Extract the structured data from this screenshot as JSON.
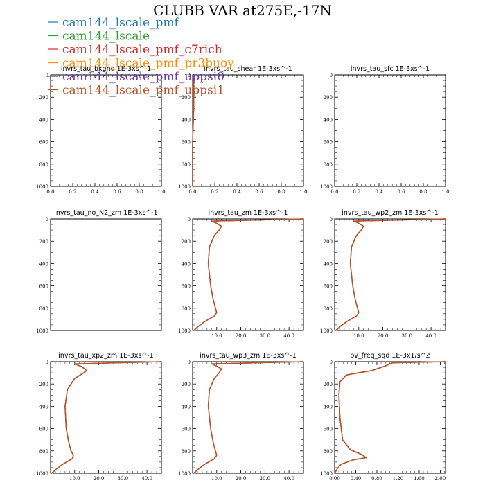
{
  "title": "CLUBB VAR at275E,-17N",
  "legend": [
    {
      "name": "cam144_lscale_pmf",
      "color": "#1f77b4"
    },
    {
      "name": "cam144_lscale",
      "color": "#2ca02c"
    },
    {
      "name": "cam144_lscale_pmf_c7rich",
      "color": "#d62728"
    },
    {
      "name": "cam144_lscale_pmf_pr3buoy",
      "color": "#ff8c00"
    },
    {
      "name": "cam144_lscale_pmf_uppsi0",
      "color": "#6a3d9a"
    },
    {
      "name": "cam144_lscale_pmf_uppsi1",
      "color": "#b5532a"
    }
  ],
  "chart_data": [
    {
      "type": "line",
      "title": "invrs_tau_bkgnd   1E-3xs^-1",
      "xlim": [
        0,
        1
      ],
      "ylim": [
        1000,
        0
      ],
      "xticks": [
        "0.0",
        "0.2",
        "0.4",
        "0.6",
        "0.8",
        "1.0"
      ],
      "yticks": [
        "0",
        "200",
        "400",
        "600",
        "800",
        "1000"
      ],
      "series": []
    },
    {
      "type": "line",
      "title": "invrs_tau_shear   1E-3xs^-1",
      "xlim": [
        0,
        1
      ],
      "ylim": [
        1000,
        0
      ],
      "xticks": [
        "0.0",
        "0.2",
        "0.4",
        "0.6",
        "0.8",
        "1.0"
      ],
      "yticks": [
        "0",
        "200",
        "400",
        "600",
        "800",
        "1000"
      ],
      "series": [
        {
          "x": [
            0.02,
            0.01,
            0.01,
            0.01,
            0.0,
            0.0,
            0.0
          ],
          "y": [
            0,
            50,
            150,
            300,
            600,
            900,
            1000
          ]
        }
      ]
    },
    {
      "type": "line",
      "title": "invrs_tau_sfc   1E-3xs^-1",
      "xlim": [
        0,
        1
      ],
      "ylim": [
        1000,
        0
      ],
      "xticks": [
        "0.0",
        "0.2",
        "0.4",
        "0.6",
        "0.8",
        "1.0"
      ],
      "yticks": [
        "0",
        "200",
        "400",
        "600",
        "800",
        "1000"
      ],
      "series": []
    },
    {
      "type": "line",
      "title": "invrs_tau_no_N2_zm   1E-3xs^-1",
      "xlim": [
        0,
        1
      ],
      "ylim": [
        1000,
        0
      ],
      "xticks": [],
      "yticks": [
        "0",
        "200",
        "400",
        "600",
        "800",
        "1000"
      ],
      "series": []
    },
    {
      "type": "line",
      "title": "invrs_tau_zm   1E-3xs^-1",
      "xlim": [
        0,
        46
      ],
      "ylim": [
        1000,
        0
      ],
      "xticks": [
        "10.0",
        "20.0",
        "30.0",
        "40.0"
      ],
      "yticks": [
        "0",
        "200",
        "400",
        "600",
        "800",
        "1000"
      ],
      "series": [
        {
          "x": [
            46,
            8,
            10,
            12,
            11,
            9,
            7,
            6.5,
            7.5,
            8.5,
            9.5,
            10,
            9,
            5,
            2.5,
            0.5
          ],
          "y": [
            0,
            20,
            40,
            65,
            100,
            150,
            250,
            400,
            600,
            720,
            800,
            840,
            870,
            920,
            960,
            1000
          ]
        }
      ]
    },
    {
      "type": "line",
      "title": "invrs_tau_wp2_zm   1E-3xs^-1",
      "xlim": [
        0,
        46
      ],
      "ylim": [
        1000,
        0
      ],
      "xticks": [
        "10.0",
        "20.0",
        "30.0",
        "40.0"
      ],
      "yticks": [
        "0",
        "200",
        "400",
        "600",
        "800",
        "1000"
      ],
      "series": [
        {
          "x": [
            46,
            8,
            10,
            12,
            11,
            9,
            7,
            6.5,
            7.5,
            8.5,
            9.5,
            10,
            9,
            5,
            2.5,
            0.5
          ],
          "y": [
            0,
            20,
            40,
            65,
            100,
            150,
            250,
            400,
            600,
            720,
            800,
            840,
            870,
            920,
            960,
            1000
          ]
        }
      ]
    },
    {
      "type": "line",
      "title": "invrs_tau_xp2_zm   1E-3xs^-1",
      "xlim": [
        0,
        46
      ],
      "ylim": [
        1000,
        0
      ],
      "xticks": [
        "10.0",
        "20.0",
        "30.0",
        "40.0"
      ],
      "yticks": [
        "0",
        "200",
        "400",
        "600",
        "800",
        "1000"
      ],
      "series": [
        {
          "x": [
            46,
            10,
            13,
            15,
            13,
            10,
            7,
            6,
            6.5,
            7.5,
            8.5,
            9.5,
            9,
            5,
            2.5,
            0.5
          ],
          "y": [
            0,
            20,
            45,
            80,
            110,
            150,
            250,
            400,
            600,
            720,
            800,
            840,
            870,
            920,
            960,
            1000
          ]
        }
      ]
    },
    {
      "type": "line",
      "title": "invrs_tau_wp3_zm   1E-3xs^-1",
      "xlim": [
        0,
        46
      ],
      "ylim": [
        1000,
        0
      ],
      "xticks": [
        "10.0",
        "20.0",
        "30.0",
        "40.0"
      ],
      "yticks": [
        "0",
        "200",
        "400",
        "600",
        "800",
        "1000"
      ],
      "series": [
        {
          "x": [
            46,
            8,
            10,
            12,
            11,
            9,
            7,
            6.5,
            7.5,
            8.5,
            9.5,
            10,
            9,
            5,
            2.5,
            0.5
          ],
          "y": [
            0,
            20,
            40,
            65,
            100,
            150,
            250,
            400,
            600,
            720,
            800,
            840,
            870,
            920,
            960,
            1000
          ]
        }
      ]
    },
    {
      "type": "line",
      "title": "bv_freq_sqd   1E-3x1/s^2",
      "xlim": [
        0,
        2.1
      ],
      "ylim": [
        1000,
        0
      ],
      "xticks": [
        "0.00",
        "0.40",
        "0.80",
        "1.20",
        "1.60",
        "2.00"
      ],
      "yticks": [
        "0",
        "200",
        "400",
        "600",
        "800",
        "1000"
      ],
      "series": [
        {
          "x": [
            2.1,
            1.1,
            0.95,
            0.7,
            0.45,
            0.22,
            0.1,
            0.08,
            0.1,
            0.15,
            0.3,
            0.5,
            0.6,
            0.35,
            0.12,
            0.05,
            0.0
          ],
          "y": [
            0,
            10,
            40,
            80,
            100,
            120,
            180,
            300,
            500,
            700,
            790,
            830,
            860,
            880,
            920,
            960,
            1000
          ]
        }
      ]
    }
  ]
}
